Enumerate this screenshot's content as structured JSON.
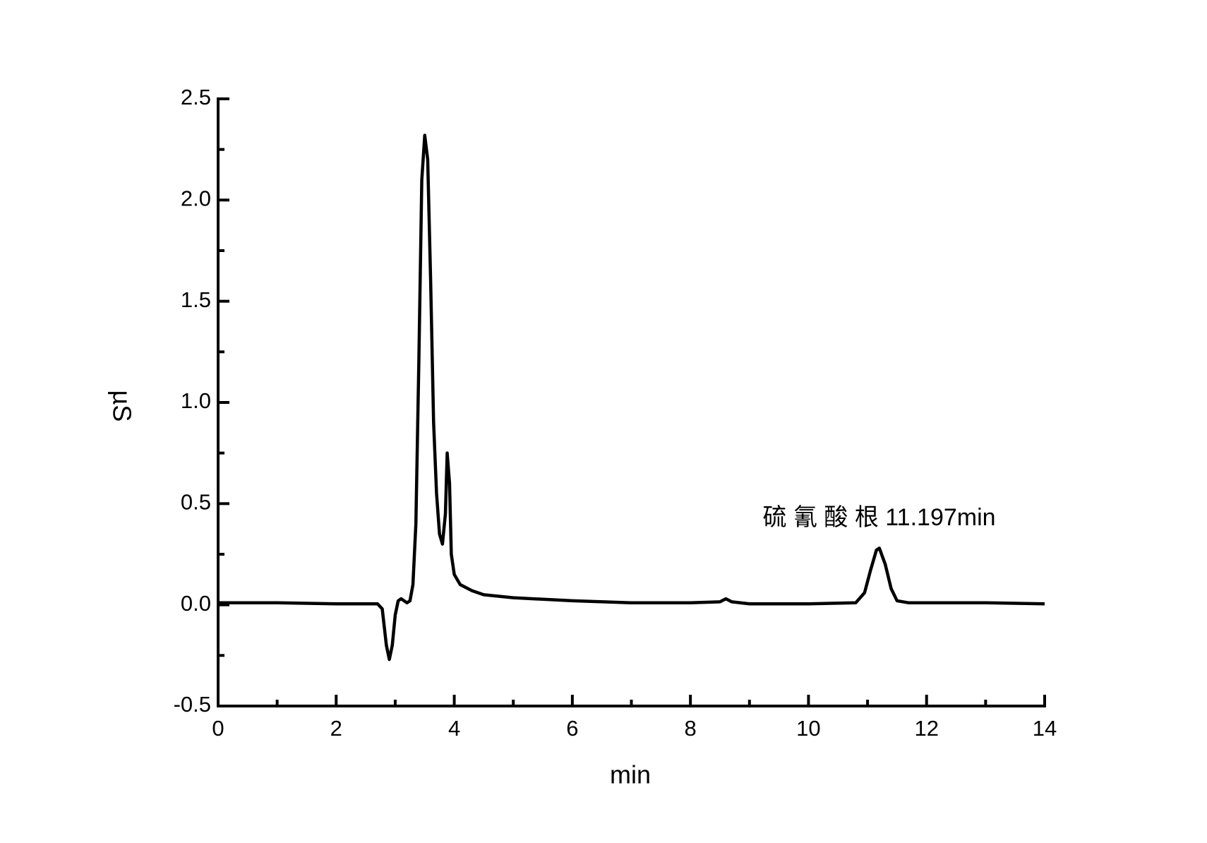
{
  "chart_data": {
    "type": "line",
    "x_label": "min",
    "y_label": "µS",
    "annotation": "硫 氰 酸 根 11.197min",
    "annotation_x": 11.197,
    "color": "#000000",
    "xlim": [
      0,
      14
    ],
    "xticks": [
      0,
      2,
      4,
      6,
      8,
      10,
      12,
      14
    ],
    "xminor_ticks": [
      1,
      3,
      5,
      7,
      9,
      11,
      13
    ],
    "ylim": [
      -0.5,
      2.5
    ],
    "yticks": [
      -0.5,
      {
        "value": 0,
        "label": "0.0"
      },
      0.5,
      {
        "value": 1,
        "label": "1.0"
      },
      1.5,
      {
        "value": 2,
        "label": "2.0"
      },
      2.5
    ],
    "yminor_ticks": [
      -0.25,
      0.25,
      0.75,
      1.25,
      1.75,
      2.25
    ],
    "x": [
      0,
      1,
      2,
      2.7,
      2.78,
      2.85,
      2.9,
      2.95,
      3.0,
      3.05,
      3.1,
      3.2,
      3.25,
      3.3,
      3.35,
      3.4,
      3.45,
      3.5,
      3.55,
      3.6,
      3.65,
      3.7,
      3.75,
      3.8,
      3.85,
      3.88,
      3.92,
      3.95,
      4.0,
      4.1,
      4.3,
      4.5,
      5,
      6,
      7,
      8,
      8.5,
      8.6,
      8.7,
      9,
      10,
      10.8,
      10.95,
      11.05,
      11.15,
      11.2,
      11.3,
      11.4,
      11.5,
      11.7,
      13,
      14
    ],
    "values": [
      0.01,
      0.01,
      0.005,
      0.005,
      -0.02,
      -0.2,
      -0.27,
      -0.2,
      -0.05,
      0.02,
      0.03,
      0.01,
      0.02,
      0.1,
      0.4,
      1.2,
      2.1,
      2.32,
      2.2,
      1.6,
      0.9,
      0.55,
      0.35,
      0.3,
      0.45,
      0.75,
      0.6,
      0.25,
      0.15,
      0.1,
      0.07,
      0.05,
      0.035,
      0.02,
      0.01,
      0.01,
      0.015,
      0.03,
      0.015,
      0.005,
      0.005,
      0.01,
      0.06,
      0.17,
      0.27,
      0.28,
      0.2,
      0.08,
      0.02,
      0.01,
      0.01,
      0.005
    ]
  }
}
